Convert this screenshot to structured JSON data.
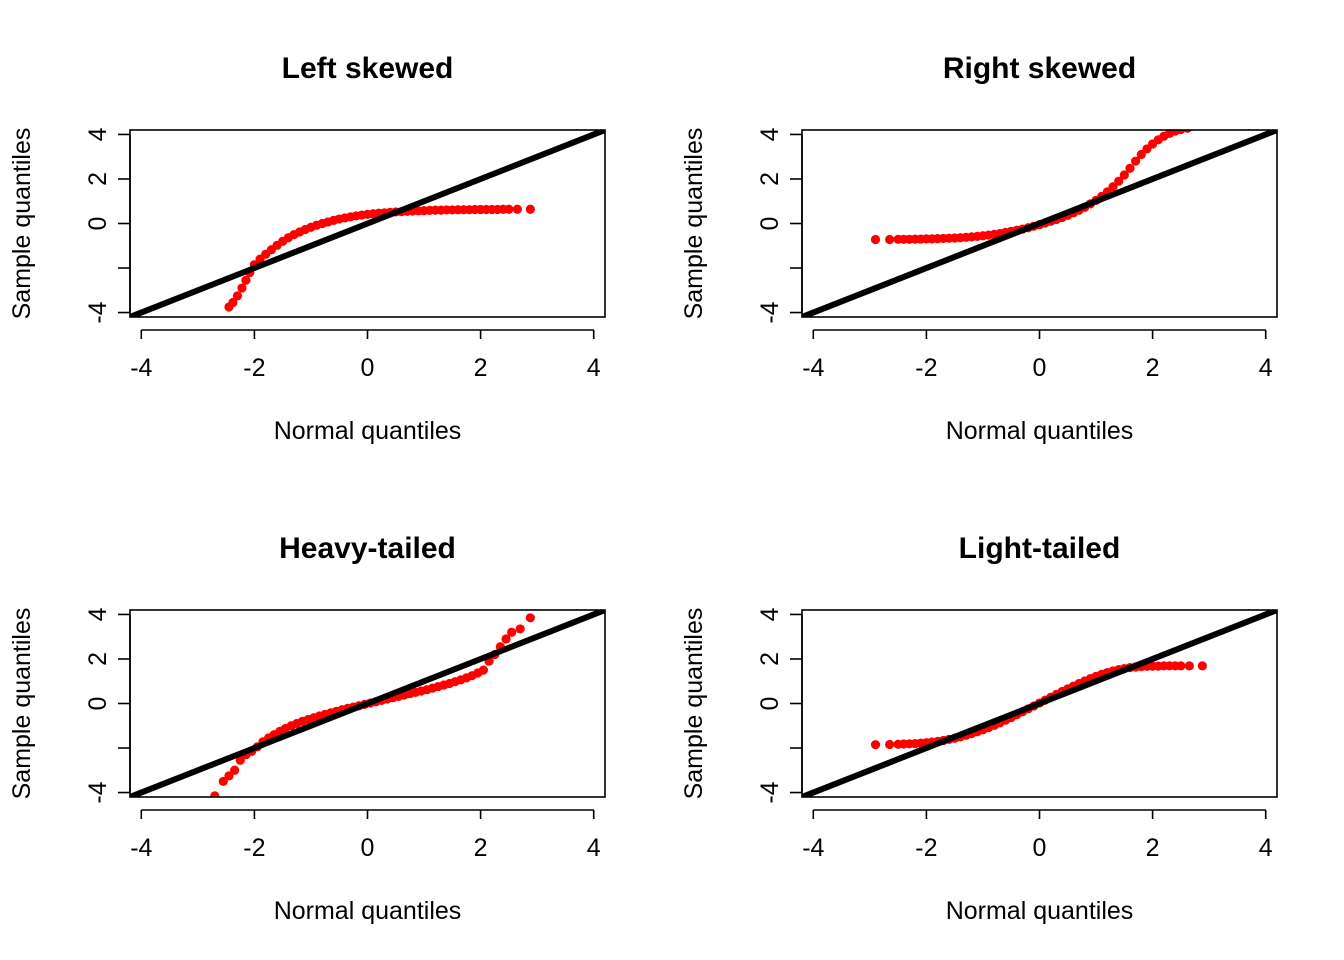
{
  "colors": {
    "points": "#ff0000",
    "reference_line": "#000000",
    "background": "#ffffff"
  },
  "chart_data": [
    {
      "type": "scatter",
      "title": "Left skewed",
      "xlabel": "Normal quantiles",
      "ylabel": "Sample quantiles",
      "xlim": [
        -4.2,
        4.2
      ],
      "ylim": [
        -4.2,
        4.2
      ],
      "xticks": [
        -4,
        -2,
        0,
        2,
        4
      ],
      "xtick_labels": [
        "-4",
        "-2",
        "0",
        "2",
        "4"
      ],
      "yticks": [
        -4,
        -2,
        0,
        2,
        4
      ],
      "ytick_labels": [
        "-4",
        "",
        "0",
        "2",
        "4"
      ],
      "reference_line": {
        "intercept": 0,
        "slope": 1
      },
      "points": {
        "x": [
          -2.45,
          -2.38,
          -2.3,
          -2.22,
          -2.15,
          -2.08,
          -2.0,
          -1.9,
          -1.8,
          -1.7,
          -1.6,
          -1.5,
          -1.4,
          -1.3,
          -1.2,
          -1.1,
          -1.0,
          -0.9,
          -0.8,
          -0.7,
          -0.6,
          -0.5,
          -0.4,
          -0.3,
          -0.2,
          -0.1,
          0.0,
          0.1,
          0.2,
          0.3,
          0.4,
          0.5,
          0.6,
          0.7,
          0.8,
          0.9,
          1.0,
          1.1,
          1.2,
          1.3,
          1.4,
          1.5,
          1.6,
          1.7,
          1.8,
          1.9,
          2.0,
          2.1,
          2.2,
          2.3,
          2.4,
          2.5,
          2.65,
          2.88
        ],
        "y": [
          -3.75,
          -3.55,
          -3.25,
          -2.9,
          -2.55,
          -2.2,
          -1.85,
          -1.6,
          -1.38,
          -1.18,
          -0.98,
          -0.8,
          -0.64,
          -0.5,
          -0.38,
          -0.27,
          -0.17,
          -0.08,
          0.0,
          0.07,
          0.14,
          0.2,
          0.25,
          0.3,
          0.34,
          0.38,
          0.41,
          0.44,
          0.46,
          0.48,
          0.5,
          0.52,
          0.53,
          0.55,
          0.56,
          0.57,
          0.58,
          0.59,
          0.6,
          0.6,
          0.61,
          0.61,
          0.62,
          0.62,
          0.62,
          0.63,
          0.63,
          0.63,
          0.63,
          0.63,
          0.64,
          0.64,
          0.64,
          0.64
        ]
      }
    },
    {
      "type": "scatter",
      "title": "Right skewed",
      "xlabel": "Normal quantiles",
      "ylabel": "Sample quantiles",
      "xlim": [
        -4.2,
        4.2
      ],
      "ylim": [
        -4.2,
        4.2
      ],
      "xticks": [
        -4,
        -2,
        0,
        2,
        4
      ],
      "xtick_labels": [
        "-4",
        "-2",
        "0",
        "2",
        "4"
      ],
      "yticks": [
        -4,
        -2,
        0,
        2,
        4
      ],
      "ytick_labels": [
        "-4",
        "",
        "0",
        "2",
        "4"
      ],
      "reference_line": {
        "intercept": 0,
        "slope": 1
      },
      "points": {
        "x": [
          -2.9,
          -2.65,
          -2.5,
          -2.4,
          -2.3,
          -2.2,
          -2.1,
          -2.0,
          -1.9,
          -1.8,
          -1.7,
          -1.6,
          -1.5,
          -1.4,
          -1.3,
          -1.2,
          -1.1,
          -1.0,
          -0.9,
          -0.8,
          -0.7,
          -0.6,
          -0.5,
          -0.4,
          -0.3,
          -0.2,
          -0.1,
          0.0,
          0.1,
          0.2,
          0.3,
          0.4,
          0.5,
          0.6,
          0.7,
          0.8,
          0.9,
          1.0,
          1.1,
          1.2,
          1.3,
          1.4,
          1.5,
          1.6,
          1.7,
          1.8,
          1.9,
          2.0,
          2.1,
          2.2,
          2.3,
          2.4,
          2.5,
          2.62
        ],
        "y": [
          -0.72,
          -0.72,
          -0.71,
          -0.71,
          -0.71,
          -0.7,
          -0.7,
          -0.69,
          -0.69,
          -0.68,
          -0.67,
          -0.66,
          -0.65,
          -0.64,
          -0.62,
          -0.6,
          -0.58,
          -0.55,
          -0.52,
          -0.49,
          -0.45,
          -0.4,
          -0.35,
          -0.3,
          -0.25,
          -0.19,
          -0.12,
          -0.05,
          0.02,
          0.1,
          0.18,
          0.27,
          0.37,
          0.48,
          0.6,
          0.73,
          0.88,
          1.04,
          1.22,
          1.42,
          1.65,
          1.9,
          2.18,
          2.48,
          2.8,
          3.1,
          3.35,
          3.57,
          3.76,
          3.92,
          4.05,
          4.15,
          4.22,
          4.28
        ]
      }
    },
    {
      "type": "scatter",
      "title": "Heavy-tailed",
      "xlabel": "Normal quantiles",
      "ylabel": "Sample quantiles",
      "xlim": [
        -4.2,
        4.2
      ],
      "ylim": [
        -4.2,
        4.2
      ],
      "xticks": [
        -4,
        -2,
        0,
        2,
        4
      ],
      "xtick_labels": [
        "-4",
        "-2",
        "0",
        "2",
        "4"
      ],
      "yticks": [
        -4,
        -2,
        0,
        2,
        4
      ],
      "ytick_labels": [
        "-4",
        "",
        "0",
        "2",
        "4"
      ],
      "reference_line": {
        "intercept": 0,
        "slope": 1
      },
      "points": {
        "x": [
          -2.7,
          -2.55,
          -2.45,
          -2.35,
          -2.25,
          -2.15,
          -2.05,
          -1.95,
          -1.85,
          -1.75,
          -1.65,
          -1.55,
          -1.45,
          -1.35,
          -1.25,
          -1.15,
          -1.05,
          -0.95,
          -0.85,
          -0.75,
          -0.65,
          -0.55,
          -0.45,
          -0.35,
          -0.25,
          -0.15,
          -0.05,
          0.05,
          0.15,
          0.25,
          0.35,
          0.45,
          0.55,
          0.65,
          0.75,
          0.85,
          0.95,
          1.05,
          1.15,
          1.25,
          1.35,
          1.45,
          1.55,
          1.65,
          1.75,
          1.85,
          1.95,
          2.05,
          2.15,
          2.25,
          2.35,
          2.45,
          2.55,
          2.7,
          2.88
        ],
        "y": [
          -4.15,
          -3.5,
          -3.25,
          -3.0,
          -2.55,
          -2.3,
          -2.15,
          -1.95,
          -1.72,
          -1.55,
          -1.4,
          -1.25,
          -1.12,
          -1.0,
          -0.9,
          -0.8,
          -0.72,
          -0.64,
          -0.56,
          -0.49,
          -0.42,
          -0.35,
          -0.28,
          -0.22,
          -0.16,
          -0.1,
          -0.04,
          0.02,
          0.08,
          0.14,
          0.2,
          0.26,
          0.32,
          0.38,
          0.44,
          0.5,
          0.56,
          0.62,
          0.69,
          0.76,
          0.83,
          0.9,
          0.98,
          1.06,
          1.15,
          1.25,
          1.37,
          1.5,
          1.9,
          2.2,
          2.55,
          2.9,
          3.2,
          3.35,
          3.85
        ]
      }
    },
    {
      "type": "scatter",
      "title": "Light-tailed",
      "xlabel": "Normal quantiles",
      "ylabel": "Sample quantiles",
      "xlim": [
        -4.2,
        4.2
      ],
      "ylim": [
        -4.2,
        4.2
      ],
      "xticks": [
        -4,
        -2,
        0,
        2,
        4
      ],
      "xtick_labels": [
        "-4",
        "-2",
        "0",
        "2",
        "4"
      ],
      "yticks": [
        -4,
        -2,
        0,
        2,
        4
      ],
      "ytick_labels": [
        "-4",
        "",
        "0",
        "2",
        "4"
      ],
      "reference_line": {
        "intercept": 0,
        "slope": 1
      },
      "points": {
        "x": [
          -2.9,
          -2.65,
          -2.5,
          -2.4,
          -2.3,
          -2.2,
          -2.1,
          -2.0,
          -1.9,
          -1.8,
          -1.7,
          -1.6,
          -1.5,
          -1.4,
          -1.3,
          -1.2,
          -1.1,
          -1.0,
          -0.9,
          -0.8,
          -0.7,
          -0.6,
          -0.5,
          -0.4,
          -0.3,
          -0.2,
          -0.1,
          0.0,
          0.1,
          0.2,
          0.3,
          0.4,
          0.5,
          0.6,
          0.7,
          0.8,
          0.9,
          1.0,
          1.1,
          1.2,
          1.3,
          1.4,
          1.5,
          1.6,
          1.7,
          1.8,
          1.9,
          2.0,
          2.1,
          2.2,
          2.3,
          2.4,
          2.5,
          2.65,
          2.88
        ],
        "y": [
          -1.85,
          -1.84,
          -1.83,
          -1.82,
          -1.81,
          -1.8,
          -1.78,
          -1.76,
          -1.73,
          -1.7,
          -1.66,
          -1.61,
          -1.56,
          -1.5,
          -1.43,
          -1.35,
          -1.27,
          -1.18,
          -1.08,
          -0.98,
          -0.87,
          -0.75,
          -0.63,
          -0.5,
          -0.37,
          -0.24,
          -0.11,
          0.02,
          0.15,
          0.28,
          0.41,
          0.54,
          0.66,
          0.78,
          0.9,
          1.01,
          1.12,
          1.22,
          1.31,
          1.39,
          1.46,
          1.52,
          1.57,
          1.61,
          1.64,
          1.66,
          1.67,
          1.68,
          1.68,
          1.69,
          1.69,
          1.69,
          1.69,
          1.69,
          1.69
        ]
      }
    }
  ]
}
